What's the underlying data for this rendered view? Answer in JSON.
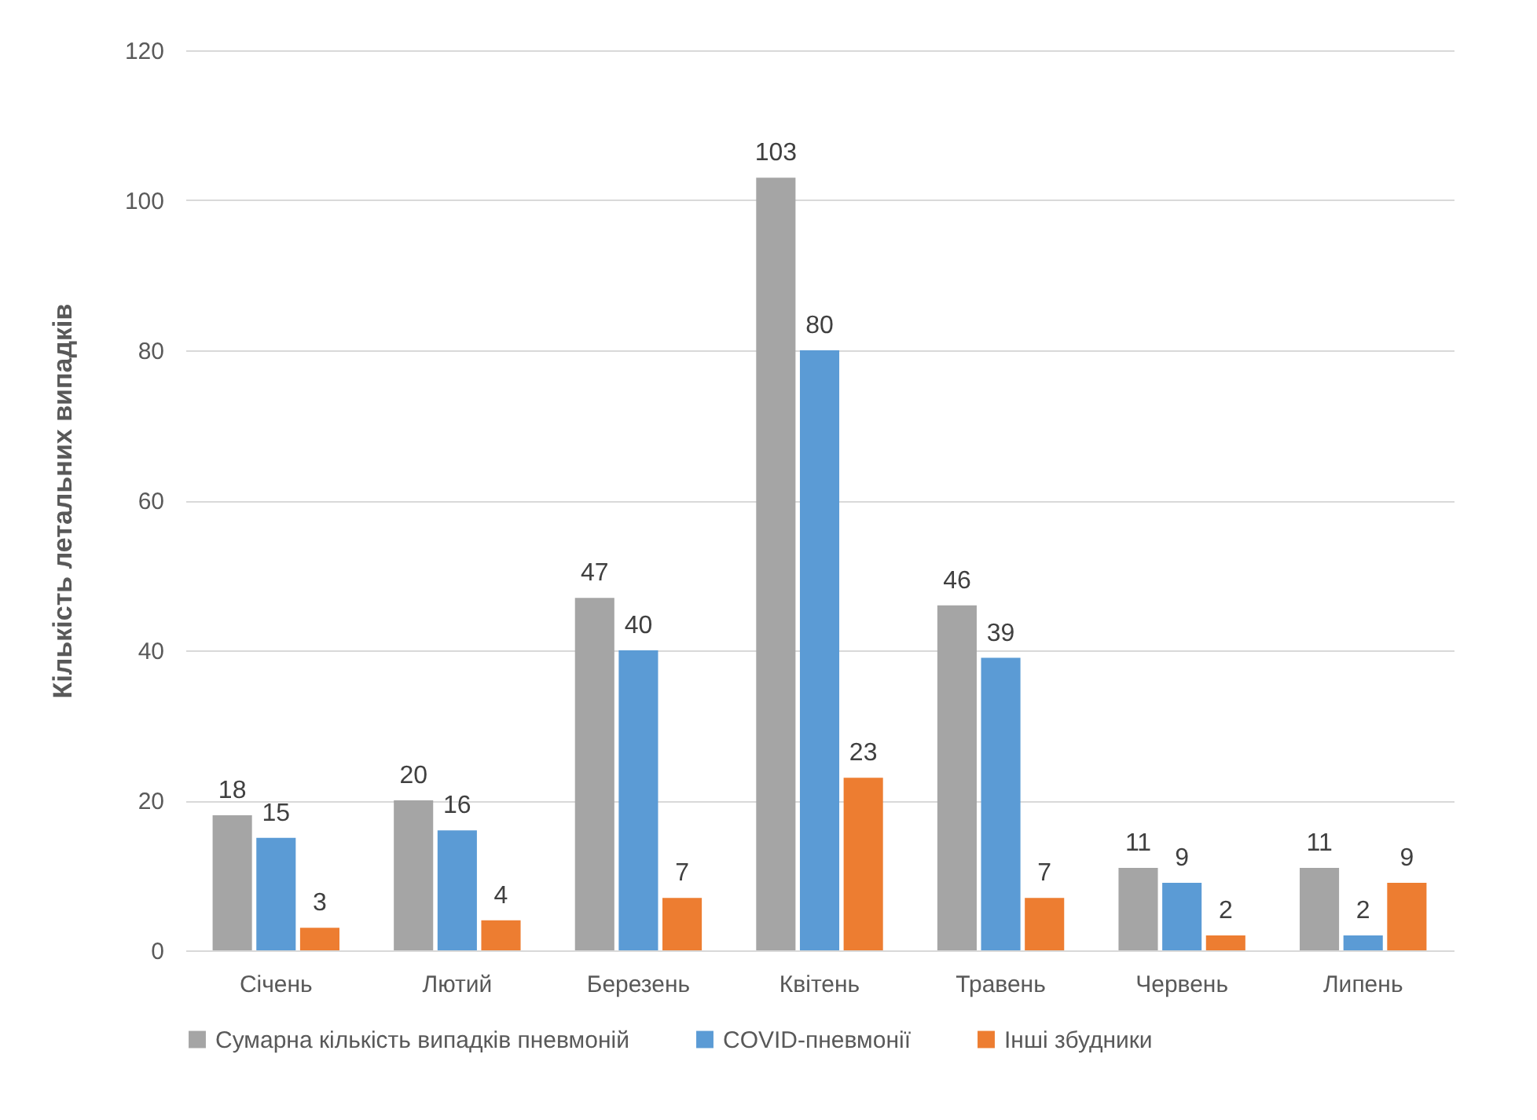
{
  "chart_data": {
    "type": "bar",
    "ylabel": "Кількість летальних випадків",
    "categories": [
      "Січень",
      "Лютий",
      "Березень",
      "Квітень",
      "Травень",
      "Червень",
      "Липень"
    ],
    "series": [
      {
        "name": "Сумарна кількість випадків пневмоній",
        "color": "#a5a5a5",
        "values": [
          18,
          20,
          47,
          103,
          46,
          11,
          11
        ]
      },
      {
        "name": "COVID-пневмонії",
        "color": "#5b9bd5",
        "values": [
          15,
          16,
          40,
          80,
          39,
          9,
          2
        ]
      },
      {
        "name": "Інші збудники",
        "color": "#ed7d31",
        "values": [
          3,
          4,
          7,
          23,
          7,
          2,
          9
        ]
      }
    ],
    "ylim": [
      0,
      120
    ],
    "yticks": [
      0,
      20,
      40,
      60,
      80,
      100,
      120
    ],
    "grid": "y",
    "legend": "bottom",
    "data_labels": true
  }
}
